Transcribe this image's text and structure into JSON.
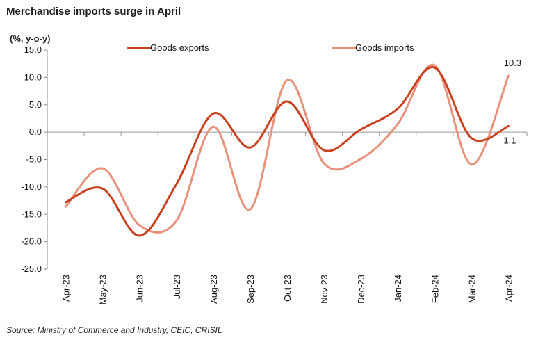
{
  "title": "Merchandise imports surge in April",
  "source": "Source: Ministry of Commerce and Industry, CEIC, CRISIL",
  "chart_data": {
    "type": "line",
    "title": "Merchandise imports surge in April",
    "ylabel": "(%, y-o-y)",
    "xlabel": "",
    "ylim": [
      -25,
      15
    ],
    "yticks": [
      15,
      10,
      5,
      0,
      -5,
      -10,
      -15,
      -20,
      -25
    ],
    "ytick_labels": [
      "15.0",
      "10.0",
      "5.0",
      "0.0",
      "-5.0",
      "-10.0",
      "-15.0",
      "-20.0",
      "-25.0"
    ],
    "categories": [
      "Apr-23",
      "May-23",
      "Jun-23",
      "Jul-23",
      "Aug-23",
      "Sep-23",
      "Oct-23",
      "Nov-23",
      "Dec-23",
      "Jan-24",
      "Feb-24",
      "Mar-24",
      "Apr-24"
    ],
    "grid": false,
    "legend": "top",
    "series": [
      {
        "name": "Goods exports",
        "color": "#C8401E",
        "values": [
          -12.8,
          -10.3,
          -18.9,
          -9.5,
          3.4,
          -2.8,
          5.6,
          -3.3,
          0.5,
          4.3,
          11.8,
          -1.1,
          1.1
        ]
      },
      {
        "name": "Goods imports",
        "color": "#E8907A",
        "values": [
          -13.6,
          -6.6,
          -17.0,
          -16.2,
          1.0,
          -14.1,
          9.5,
          -5.7,
          -4.9,
          1.5,
          12.2,
          -5.9,
          10.3
        ]
      }
    ],
    "annotations": [
      {
        "series": "Goods imports",
        "category": "Apr-24",
        "text": "10.3"
      },
      {
        "series": "Goods exports",
        "category": "Apr-24",
        "text": "1.1"
      }
    ]
  }
}
